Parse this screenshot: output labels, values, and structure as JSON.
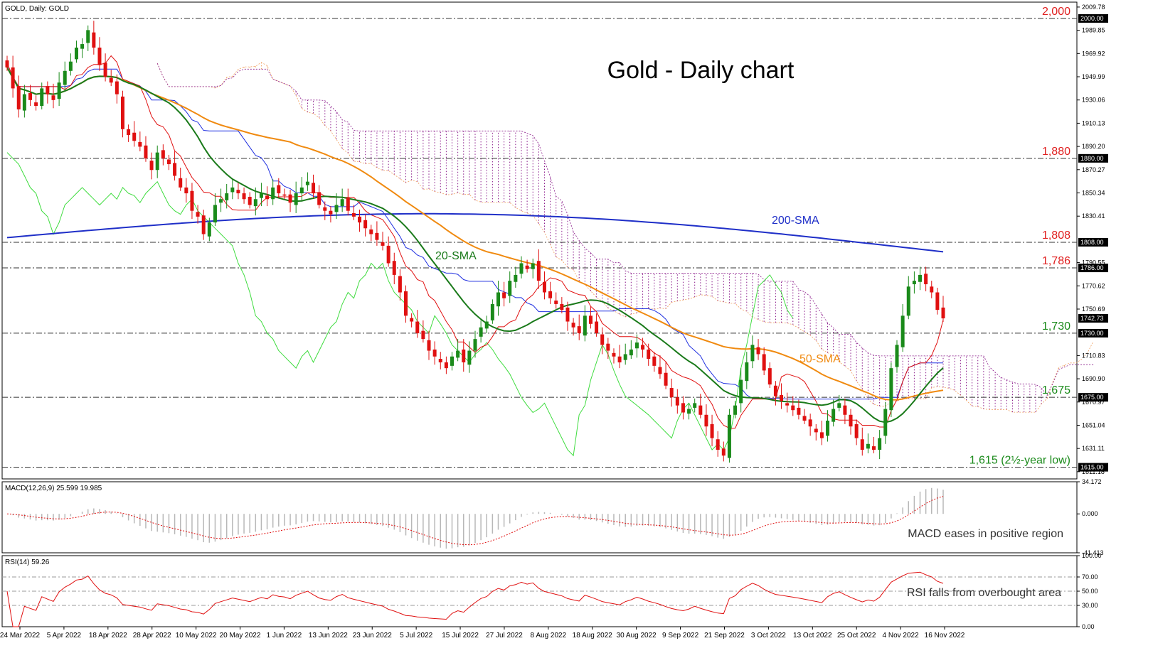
{
  "header": {
    "symbol_label": "GOLD, Daily:  GOLD"
  },
  "chart_data": {
    "type": "candlestick",
    "title": "Gold - Daily chart",
    "x_dates": [
      "24 Mar 2022",
      "5 Apr 2022",
      "18 Apr 2022",
      "28 Apr 2022",
      "10 May 2022",
      "20 May 2022",
      "1 Jun 2022",
      "13 Jun 2022",
      "23 Jun 2022",
      "5 Jul 2022",
      "15 Jul 2022",
      "27 Jul 2022",
      "8 Aug 2022",
      "18 Aug 2022",
      "30 Aug 2022",
      "9 Sep 2022",
      "21 Sep 2022",
      "3 Oct 2022",
      "13 Oct 2022",
      "25 Oct 2022",
      "4 Nov 2022",
      "16 Nov 2022"
    ],
    "price_ticks": [
      "2009.78",
      "1989.85",
      "1969.92",
      "1949.99",
      "1930.06",
      "1910.13",
      "1890.20",
      "1870.27",
      "1850.34",
      "1830.41",
      "1790.55",
      "1770.62",
      "1750.69",
      "1710.83",
      "1690.90",
      "1670.97",
      "1651.04",
      "1631.11",
      "1611.18"
    ],
    "price_range": [
      1605,
      2014
    ],
    "key_levels": [
      {
        "value": 2000.0,
        "tag": "2000.00",
        "label": "2,000",
        "color": "#e02020"
      },
      {
        "value": 1880.0,
        "tag": "1880.00",
        "label": "1,880",
        "color": "#e02020"
      },
      {
        "value": 1808.0,
        "tag": "1808.00",
        "label": "1,808",
        "color": "#e02020"
      },
      {
        "value": 1786.0,
        "tag": "1786.00",
        "label": "1,786",
        "color": "#e02020"
      },
      {
        "value": 1730.0,
        "tag": "1730.00",
        "label": "1,730",
        "color": "#1a8a1a"
      },
      {
        "value": 1675.0,
        "tag": "1675.00",
        "label": "1,675",
        "color": "#1a8a1a"
      },
      {
        "value": 1615.0,
        "tag": "1615.00",
        "label": "1,615 (2½-year low)",
        "color": "#1a8a1a"
      }
    ],
    "current_price": {
      "value": 1742.73,
      "tag": "1742.73"
    },
    "annotations": {
      "sma20": "20-SMA",
      "sma50": "50-SMA",
      "sma200": "200-SMA"
    },
    "colors": {
      "up": "#1a8a1a",
      "down": "#e01010",
      "sma20": "#1a7a1a",
      "sma50": "#f08a10",
      "sma200": "#1f2fc8",
      "tenkan": "#e01010",
      "kijun": "#2030e0",
      "chikou": "#3fdc3f",
      "cloud_bear": "#8a1a8a",
      "cloud_bull": "#f0a060"
    },
    "closes": [
      1958,
      1940,
      1922,
      1935,
      1930,
      1925,
      1940,
      1935,
      1930,
      1945,
      1955,
      1963,
      1975,
      1978,
      1990,
      1975,
      1960,
      1950,
      1945,
      1935,
      1905,
      1900,
      1895,
      1890,
      1880,
      1870,
      1885,
      1880,
      1875,
      1865,
      1855,
      1850,
      1835,
      1830,
      1815,
      1825,
      1840,
      1845,
      1850,
      1855,
      1850,
      1845,
      1840,
      1845,
      1850,
      1845,
      1855,
      1850,
      1848,
      1842,
      1850,
      1855,
      1860,
      1850,
      1840,
      1835,
      1832,
      1840,
      1845,
      1835,
      1830,
      1825,
      1820,
      1815,
      1810,
      1805,
      1790,
      1780,
      1765,
      1745,
      1740,
      1730,
      1725,
      1715,
      1710,
      1705,
      1700,
      1710,
      1715,
      1705,
      1715,
      1725,
      1735,
      1740,
      1755,
      1765,
      1760,
      1775,
      1780,
      1790,
      1785,
      1790,
      1775,
      1765,
      1760,
      1755,
      1750,
      1740,
      1735,
      1730,
      1745,
      1738,
      1730,
      1720,
      1715,
      1710,
      1705,
      1712,
      1716,
      1722,
      1716,
      1708,
      1702,
      1695,
      1685,
      1675,
      1668,
      1662,
      1665,
      1670,
      1660,
      1650,
      1640,
      1630,
      1625,
      1660,
      1668,
      1690,
      1705,
      1720,
      1712,
      1698,
      1686,
      1676,
      1672,
      1668,
      1664,
      1660,
      1655,
      1650,
      1645,
      1640,
      1655,
      1665,
      1670,
      1660,
      1650,
      1640,
      1630,
      1635,
      1630,
      1640,
      1665,
      1700,
      1720,
      1745,
      1770,
      1775,
      1780,
      1772,
      1765,
      1750,
      1742.73
    ],
    "macd": {
      "label": "MACD(12,26,9) 25.599 19.985",
      "ticks": [
        "34.172",
        "0.000",
        "-41.413"
      ],
      "range": [
        -41.413,
        34.172
      ],
      "annotation": "MACD eases in positive region"
    },
    "rsi": {
      "label": "RSI(14) 59.26",
      "ticks": [
        "100.00",
        "70.00",
        "50.00",
        "30.00",
        "0.00"
      ],
      "range": [
        0,
        100
      ],
      "annotation": "RSI falls from overbought area"
    }
  }
}
